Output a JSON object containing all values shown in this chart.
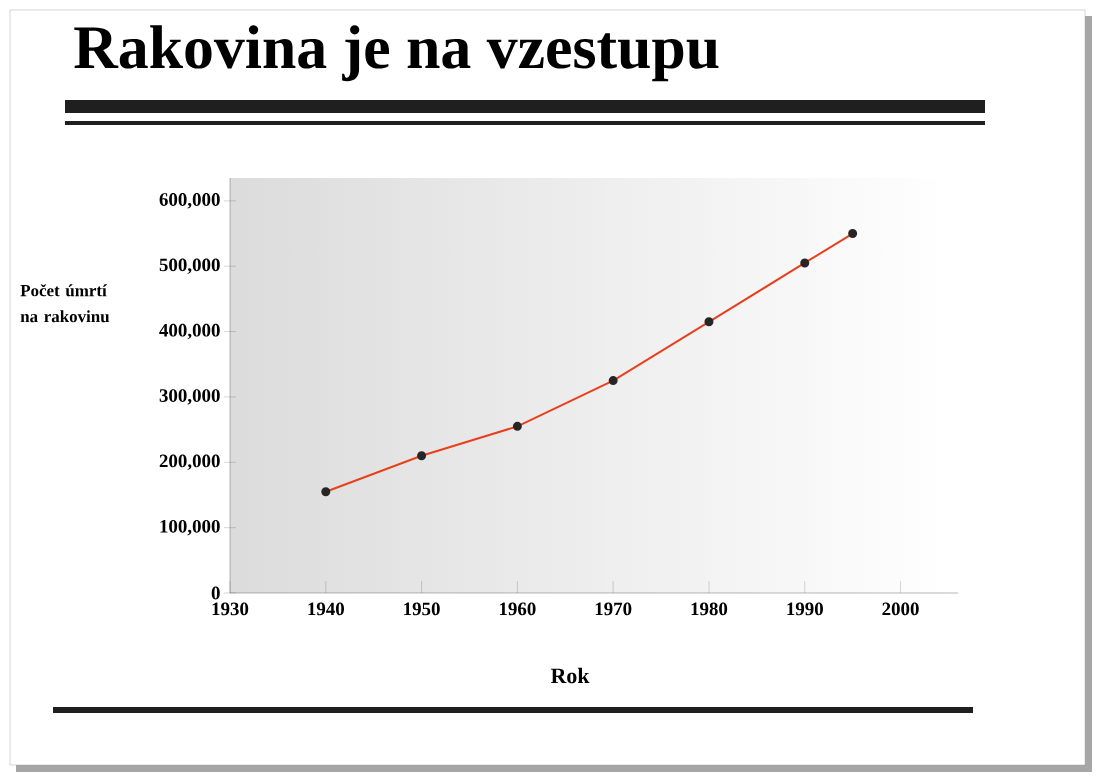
{
  "chart_data": {
    "type": "line",
    "title": "Rakovina je na vzestupu",
    "xlabel": "Rok",
    "ylabel": "Počet úmrtí na rakovinu",
    "x": [
      1940,
      1950,
      1960,
      1970,
      1980,
      1990,
      1995
    ],
    "series": [
      {
        "color": "#e8401c",
        "values": [
          155000,
          210000,
          255000,
          325000,
          415000,
          505000,
          550000
        ]
      }
    ],
    "xlim": [
      1930,
      2006
    ],
    "ylim": [
      0,
      635000
    ],
    "xticks": [
      1930,
      1940,
      1950,
      1960,
      1970,
      1980,
      1990,
      2000
    ],
    "yticks": [
      0,
      {
        "value": 100000,
        "label": "100,000"
      },
      {
        "value": 200000,
        "label": "200,000"
      },
      {
        "value": 300000,
        "label": "300,000"
      },
      {
        "value": 400000,
        "label": "400,000"
      },
      {
        "value": 500000,
        "label": "500,000"
      },
      {
        "value": 600000,
        "label": "600,000"
      }
    ],
    "marker": "circle",
    "line_style": "solid",
    "grid": false
  }
}
